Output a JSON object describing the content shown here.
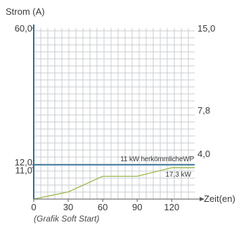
{
  "caption": "(Grafik Soft Start)",
  "chart_data": {
    "type": "line",
    "title": "",
    "xlabel": "Zeit(en)",
    "ylabel": "Strom (A)",
    "xlim": [
      0,
      140
    ],
    "ylim": [
      0,
      60
    ],
    "y2lim": [
      0,
      15
    ],
    "grid": true,
    "x_ticks": [
      {
        "value": 0,
        "label": "0"
      },
      {
        "value": 30,
        "label": "30"
      },
      {
        "value": 60,
        "label": "60"
      },
      {
        "value": 90,
        "label": "90"
      },
      {
        "value": 120,
        "label": "120"
      }
    ],
    "y_ticks": [
      {
        "value": 60,
        "label": "60,0"
      },
      {
        "value": 12,
        "label": "12,0"
      },
      {
        "value": 11,
        "label": "11,0"
      }
    ],
    "y2_ticks": [
      {
        "value": 15,
        "label": "15,0"
      },
      {
        "value": 7.8,
        "label": "7,8"
      },
      {
        "value": 4,
        "label": "4,0"
      }
    ],
    "series": [
      {
        "name": "11 kW herkömmlicheWP",
        "color": "#2e6f99",
        "x": [
          0,
          140
        ],
        "y": [
          12,
          12
        ]
      },
      {
        "name": "17,3 kW",
        "color": "#9ab84a",
        "x": [
          0,
          30,
          60,
          90,
          120,
          140
        ],
        "y": [
          0,
          2.5,
          8,
          8,
          11,
          11
        ]
      }
    ]
  }
}
